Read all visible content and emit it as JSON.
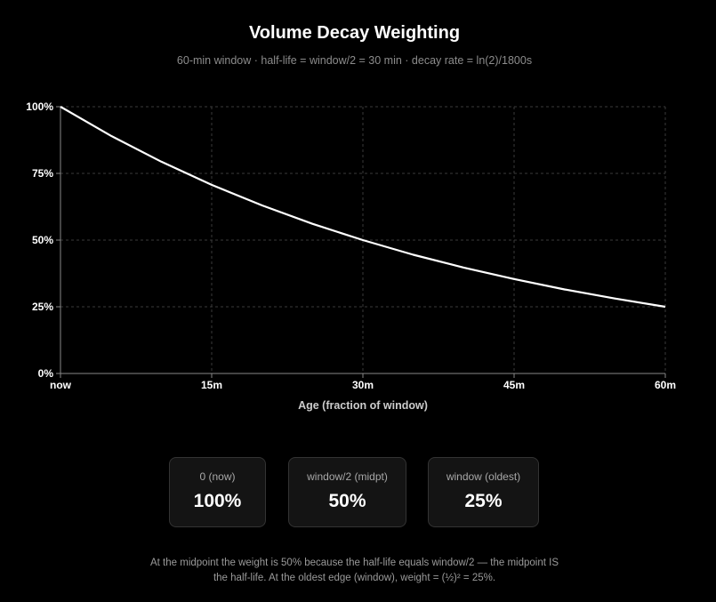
{
  "header": {
    "title": "Volume Decay Weighting",
    "subtitle": "60-min window · half-life = window/2 = 30 min · decay rate = ln(2)/1800s"
  },
  "chart_data": {
    "type": "line",
    "xlabel": "Age (fraction of window)",
    "ylabel": "",
    "x_tick_labels": [
      "now",
      "15m",
      "30m",
      "45m",
      "60m"
    ],
    "x_ticks_minutes": [
      0,
      15,
      30,
      45,
      60
    ],
    "y_tick_labels": [
      "0%",
      "25%",
      "50%",
      "75%",
      "100%"
    ],
    "y_ticks": [
      0,
      25,
      50,
      75,
      100
    ],
    "xlim": [
      0,
      60
    ],
    "ylim": [
      0,
      100
    ],
    "grid": true,
    "legend": "none",
    "series": [
      {
        "x": [
          0,
          5,
          10,
          15,
          20,
          25,
          30,
          35,
          40,
          45,
          50,
          55,
          60
        ],
        "values": [
          100,
          89.1,
          79.4,
          70.7,
          63.0,
          56.1,
          50,
          44.5,
          39.7,
          35.4,
          31.5,
          28.1,
          25
        ]
      }
    ],
    "colors": {
      "line": "#ffffff",
      "grid": "#3a3a3a",
      "axis": "#888888"
    }
  },
  "cards": [
    {
      "label": "0 (now)",
      "value": "100%"
    },
    {
      "label": "window/2 (midpt)",
      "value": "50%"
    },
    {
      "label": "window (oldest)",
      "value": "25%"
    }
  ],
  "footnote": {
    "line1": "At the midpoint the weight is 50% because the half-life equals window/2 — the midpoint IS",
    "line2": "the half-life. At the oldest edge (window), weight = (½)² = 25%."
  }
}
